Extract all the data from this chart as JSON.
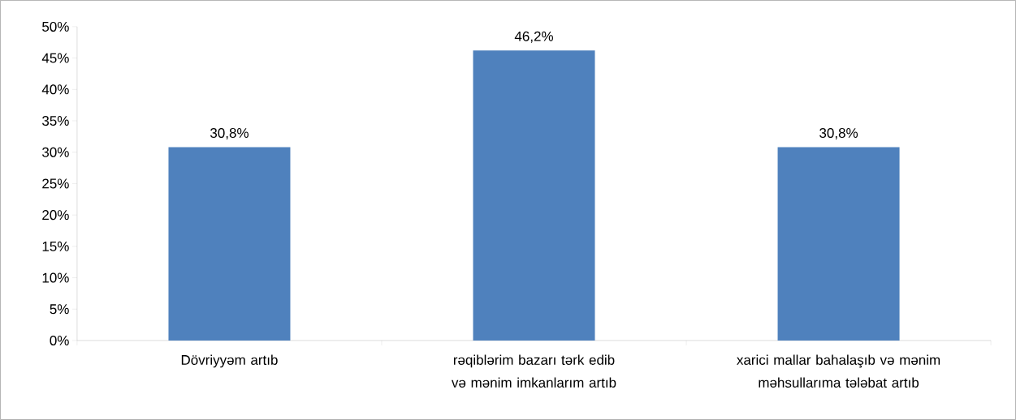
{
  "chart_data": {
    "type": "bar",
    "categories": [
      "Dövriyyəm artıb",
      "rəqiblərim bazarı tərk edib və mənim imkanlarım artıb",
      "xarici mallar bahalaşıb və mənim məhsullarıma tələbat artıb"
    ],
    "values": [
      30.8,
      46.2,
      30.8
    ],
    "value_labels": [
      "30,8%",
      "46,2%",
      "30,8%"
    ],
    "color": "#4f81bd",
    "ylim": [
      0,
      50
    ],
    "yticks": [
      {
        "value": 0,
        "label": "0%"
      },
      {
        "value": 5,
        "label": "5%"
      },
      {
        "value": 10,
        "label": "10%"
      },
      {
        "value": 15,
        "label": "15%"
      },
      {
        "value": 20,
        "label": "20%"
      },
      {
        "value": 25,
        "label": "25%"
      },
      {
        "value": 30,
        "label": "30%"
      },
      {
        "value": 35,
        "label": "35%"
      },
      {
        "value": 40,
        "label": "40%"
      },
      {
        "value": 45,
        "label": "45%"
      },
      {
        "value": 50,
        "label": "50%"
      }
    ],
    "grid": false
  }
}
